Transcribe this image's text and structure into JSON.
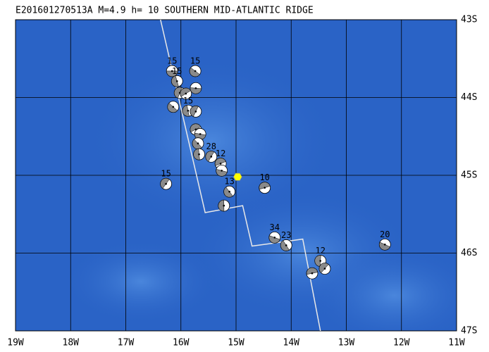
{
  "map": {
    "title": "E201601270513A  M=4.9  h= 10  SOUTHERN MID-ATLANTIC RIDGE",
    "xlim": [
      -19,
      -11
    ],
    "ylim": [
      -47,
      -43
    ],
    "xticks": [
      {
        "value": -19,
        "label": "19W"
      },
      {
        "value": -18,
        "label": "18W"
      },
      {
        "value": -17,
        "label": "17W"
      },
      {
        "value": -16,
        "label": "16W"
      },
      {
        "value": -15,
        "label": "15W"
      },
      {
        "value": -14,
        "label": "14W"
      },
      {
        "value": -13,
        "label": "13W"
      },
      {
        "value": -12,
        "label": "12W"
      },
      {
        "value": -11,
        "label": "11W"
      }
    ],
    "yticks": [
      {
        "value": -43,
        "label": "43S"
      },
      {
        "value": -44,
        "label": "44S"
      },
      {
        "value": -45,
        "label": "45S"
      },
      {
        "value": -46,
        "label": "46S"
      },
      {
        "value": -47,
        "label": "47S"
      }
    ],
    "ridge": {
      "lon": [
        -16.37,
        -15.56,
        -14.88,
        -14.71,
        -13.79,
        -13.47
      ],
      "lat": [
        -43.0,
        -45.48,
        -45.39,
        -45.91,
        -45.82,
        -47.0
      ]
    },
    "epicenter": {
      "lon": -14.97,
      "lat": -45.02
    },
    "events": [
      {
        "lon": -16.16,
        "lat": -43.66,
        "label": "15"
      },
      {
        "lon": -15.74,
        "lat": -43.66,
        "label": "15"
      },
      {
        "lon": -16.07,
        "lat": -43.79,
        "label": "15"
      },
      {
        "lon": -16.02,
        "lat": -43.94,
        "label": null
      },
      {
        "lon": -15.91,
        "lat": -43.95,
        "label": null
      },
      {
        "lon": -15.73,
        "lat": -43.88,
        "label": null
      },
      {
        "lon": -16.14,
        "lat": -44.12,
        "label": null
      },
      {
        "lon": -15.87,
        "lat": -44.17,
        "label": "15"
      },
      {
        "lon": -15.73,
        "lat": -44.18,
        "label": null
      },
      {
        "lon": -15.73,
        "lat": -44.41,
        "label": null
      },
      {
        "lon": -15.65,
        "lat": -44.47,
        "label": null
      },
      {
        "lon": -15.69,
        "lat": -44.59,
        "label": null
      },
      {
        "lon": -15.67,
        "lat": -44.73,
        "label": null
      },
      {
        "lon": -15.45,
        "lat": -44.76,
        "label": "28"
      },
      {
        "lon": -15.28,
        "lat": -44.85,
        "label": "12"
      },
      {
        "lon": -15.26,
        "lat": -44.94,
        "label": null
      },
      {
        "lon": -15.12,
        "lat": -45.21,
        "label": "13"
      },
      {
        "lon": -15.22,
        "lat": -45.39,
        "label": null
      },
      {
        "lon": -16.27,
        "lat": -45.11,
        "label": "15"
      },
      {
        "lon": -14.48,
        "lat": -45.16,
        "label": "10"
      },
      {
        "lon": -14.3,
        "lat": -45.8,
        "label": "34"
      },
      {
        "lon": -14.09,
        "lat": -45.9,
        "label": "23"
      },
      {
        "lon": -13.47,
        "lat": -46.1,
        "label": "12"
      },
      {
        "lon": -13.39,
        "lat": -46.2,
        "label": null
      },
      {
        "lon": -13.62,
        "lat": -46.26,
        "label": null
      },
      {
        "lon": -12.3,
        "lat": -45.89,
        "label": "20"
      }
    ]
  }
}
